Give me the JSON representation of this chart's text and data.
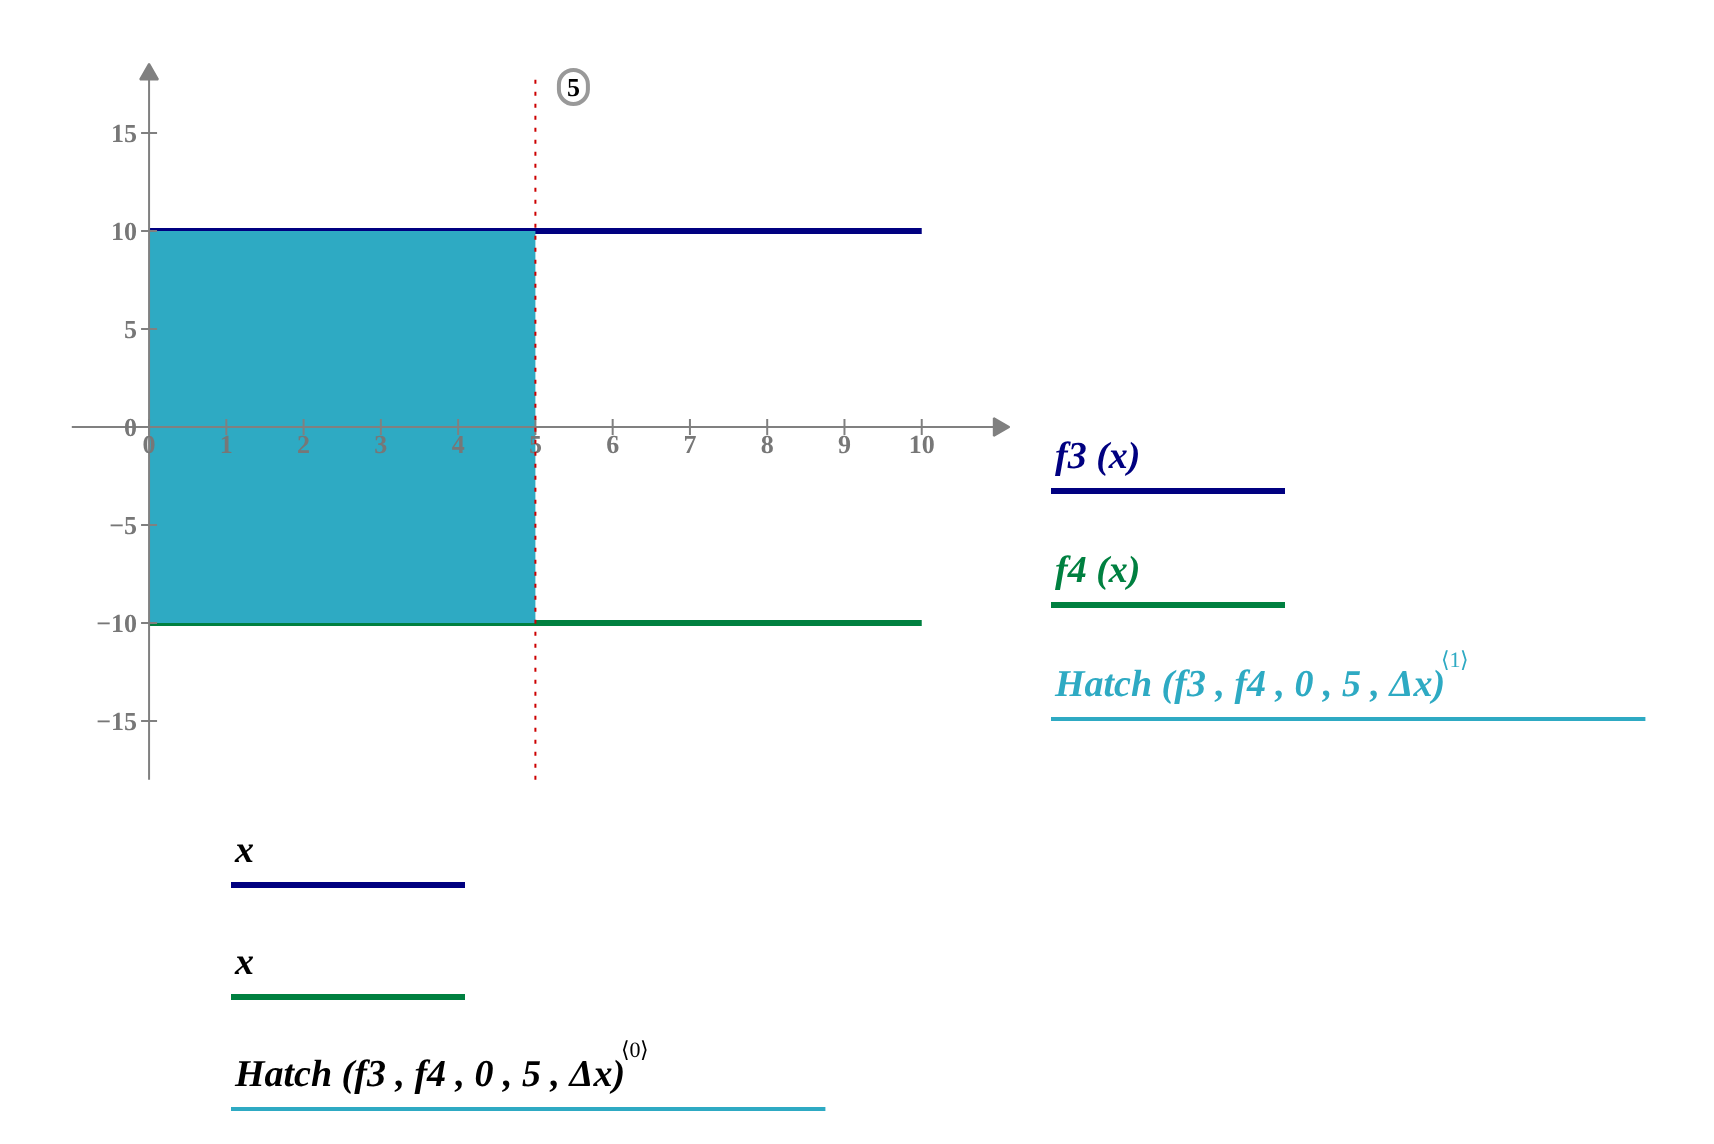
{
  "chart_data": {
    "type": "line",
    "xlim": [
      -1,
      11
    ],
    "ylim": [
      -18,
      18
    ],
    "xticks": [
      0,
      1,
      2,
      3,
      4,
      5,
      6,
      7,
      8,
      9,
      10
    ],
    "yticks": [
      {
        "value": -15,
        "label": "−15"
      },
      {
        "value": -10,
        "label": "−10"
      },
      {
        "value": -5,
        "label": "−5"
      },
      0,
      5,
      10,
      15
    ],
    "series": [
      {
        "name": "f3 (x)",
        "color": "#000080",
        "x": [
          0,
          10
        ],
        "values": [
          10,
          10
        ]
      },
      {
        "name": "f4 (x)",
        "color": "#008040",
        "x": [
          0,
          10
        ],
        "values": [
          -10,
          -10
        ]
      },
      {
        "name": "Hatch (f3 , f4 , 0 , 5 , Δx)$^{⟨1⟩}$",
        "type": "area",
        "color": "#2eaac3",
        "x": [
          0,
          5
        ],
        "values": [
          10,
          10
        ]
      },
      {
        "type": "area",
        "color": "#2eaac3",
        "x": [
          0,
          5
        ],
        "values": [
          -10,
          -10
        ]
      }
    ],
    "ref_lines": [
      {
        "axis": "x",
        "value": 5,
        "label": "5",
        "color": "#cc0000",
        "line_style": "dotted"
      }
    ],
    "legend": "right",
    "annotations": [
      "x",
      "x",
      "Hatch (f3 , f4 , 0 , 5 , Δx)$^{⟨0⟩}$"
    ]
  }
}
